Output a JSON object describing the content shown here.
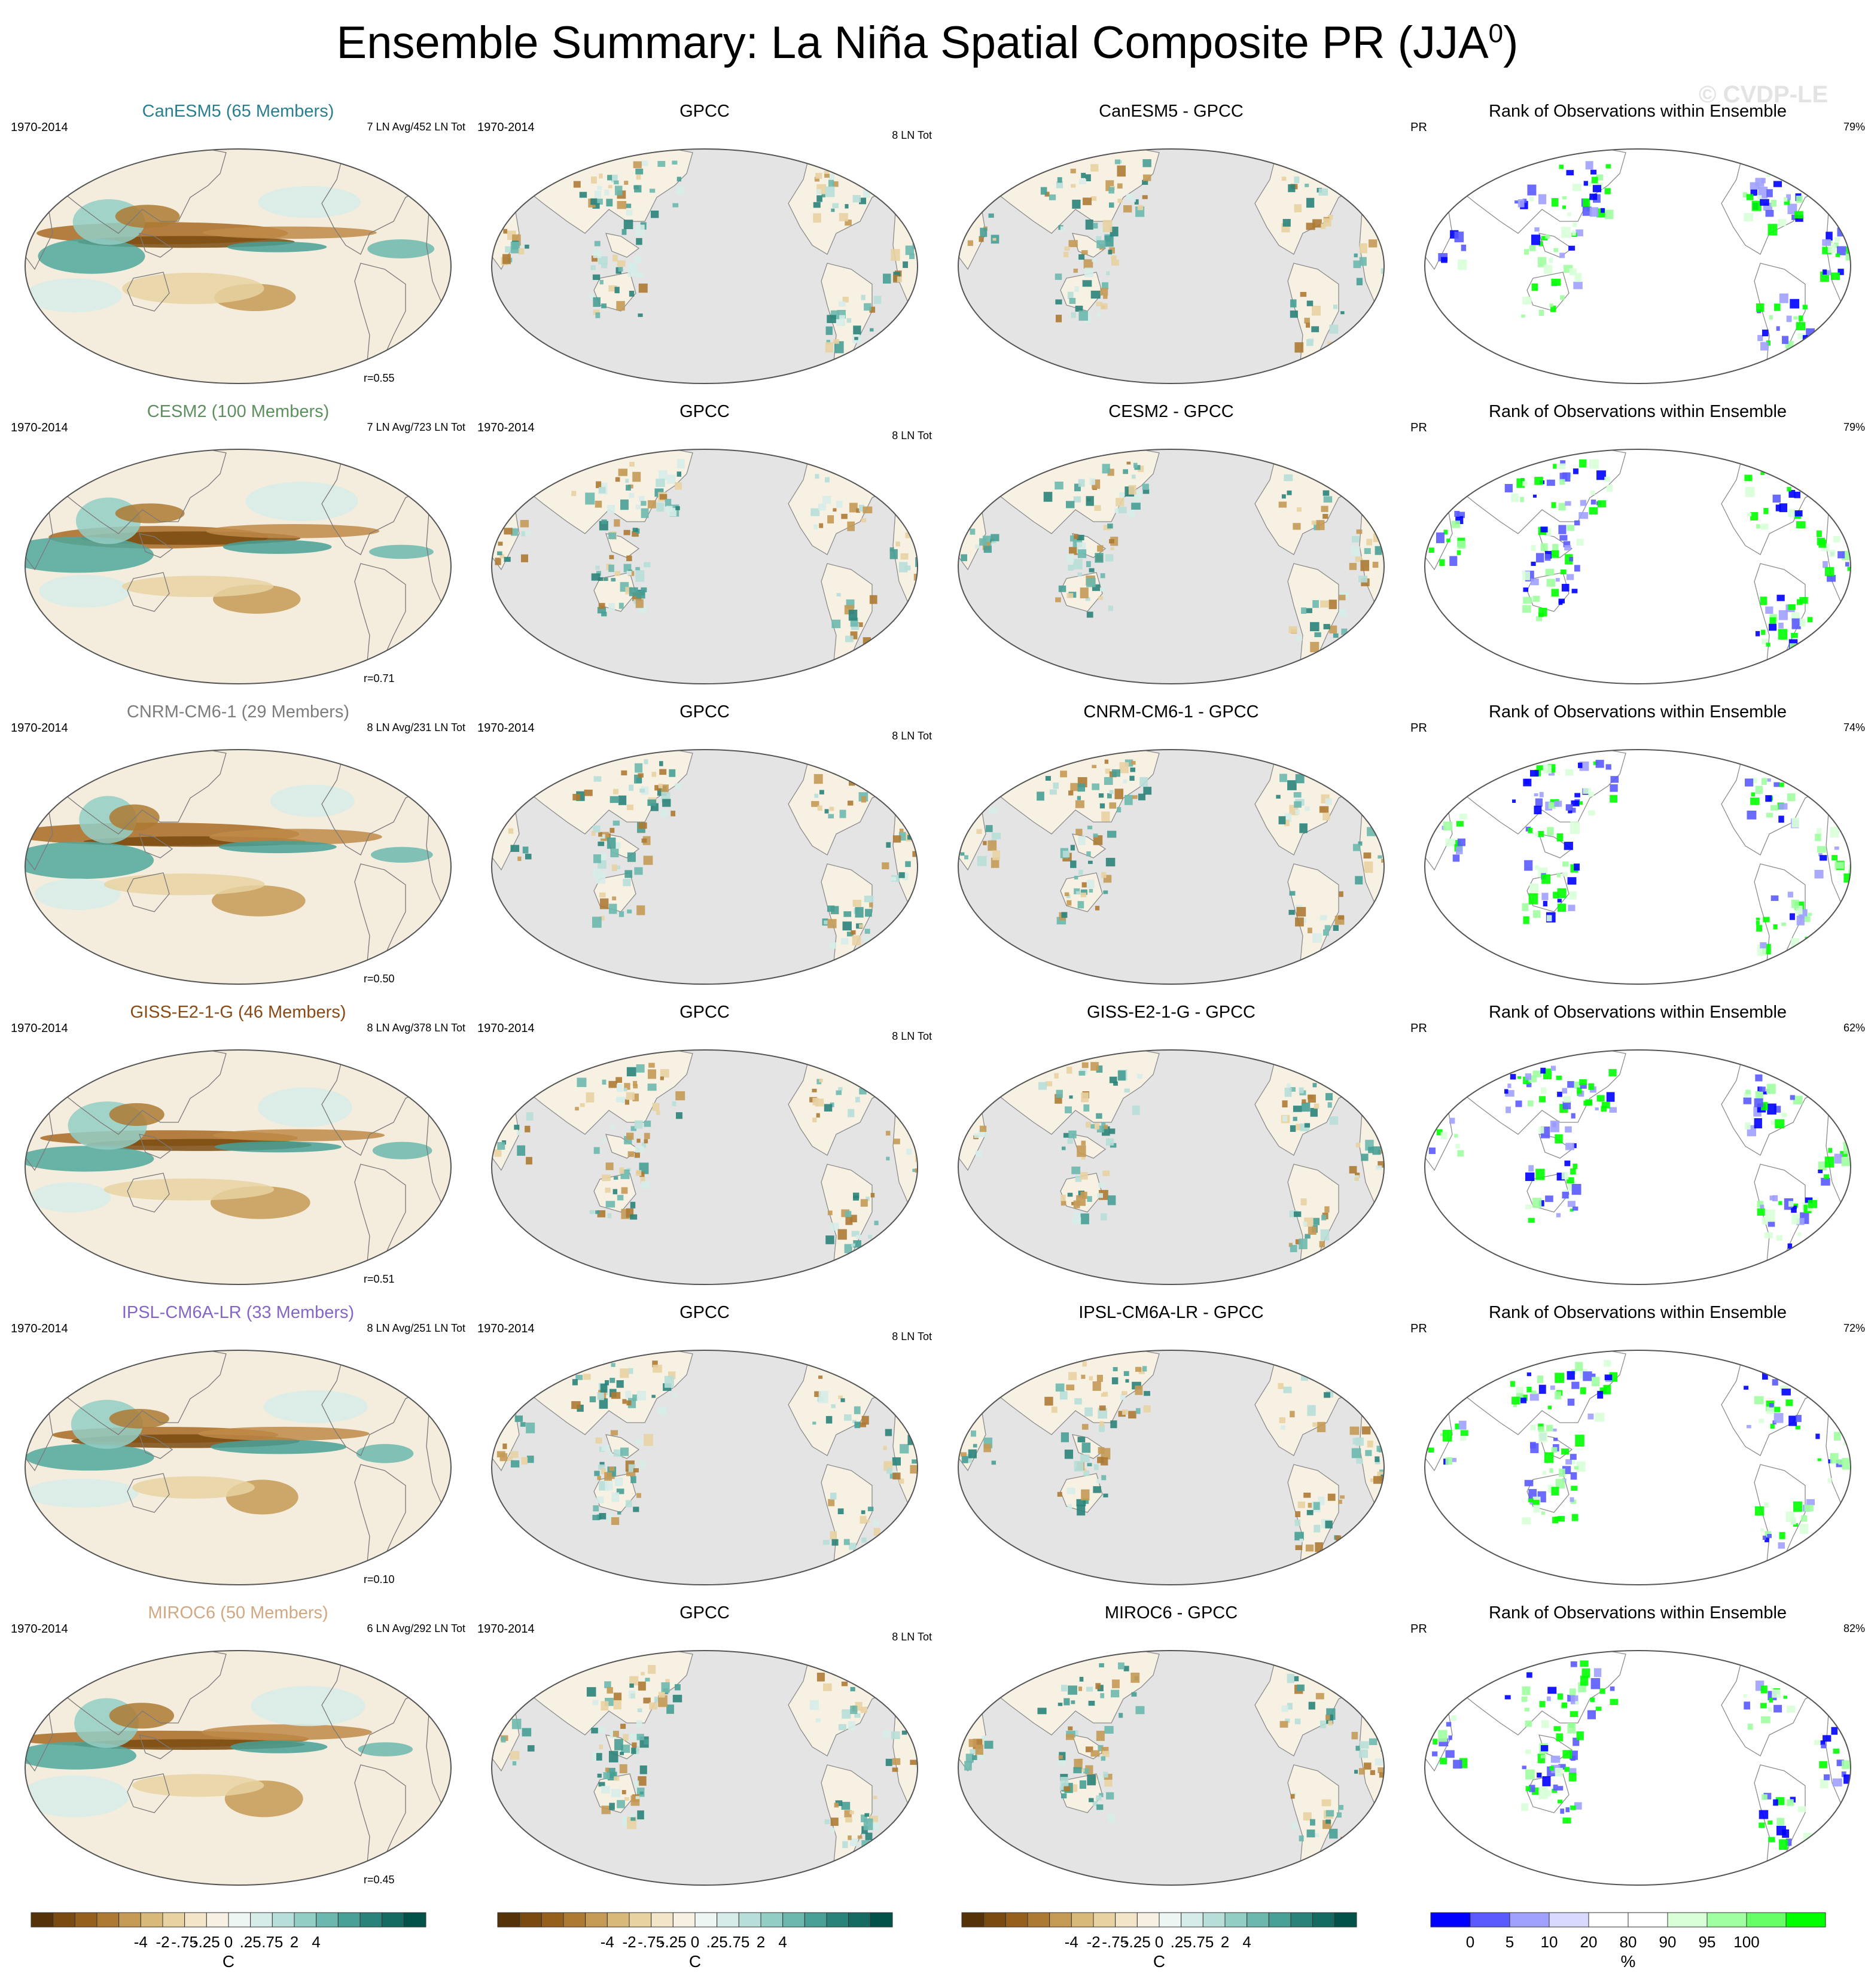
{
  "title_main": "Ensemble Summary: La Niña Spatial Composite PR (JJA",
  "title_sup": "0",
  "title_end": ")",
  "watermark": "© CVDP-LE",
  "rows": [
    {
      "model_title": "CanESM5 (65 Members)",
      "color": "#2a7f8f",
      "period": "1970-2014",
      "model_count": "7 LN Avg/452 LN Tot",
      "r": "r=0.55",
      "obs_title": "GPCC",
      "obs_period": "1970-2014",
      "obs_count": "8 LN Tot",
      "diff_title": "CanESM5 - GPCC",
      "rank_title": "Rank of Observations within Ensemble",
      "rank_var": "PR",
      "rank_pct": "79%"
    },
    {
      "model_title": "CESM2 (100 Members)",
      "color": "#5e8f5e",
      "period": "1970-2014",
      "model_count": "7 LN Avg/723 LN Tot",
      "r": "r=0.71",
      "obs_title": "GPCC",
      "obs_period": "1970-2014",
      "obs_count": "8 LN Tot",
      "diff_title": "CESM2 - GPCC",
      "rank_title": "Rank of Observations within Ensemble",
      "rank_var": "PR",
      "rank_pct": "79%"
    },
    {
      "model_title": "CNRM-CM6-1 (29 Members)",
      "color": "#7d7d7d",
      "period": "1970-2014",
      "model_count": "8 LN Avg/231 LN Tot",
      "r": "r=0.50",
      "obs_title": "GPCC",
      "obs_period": "1970-2014",
      "obs_count": "8 LN Tot",
      "diff_title": "CNRM-CM6-1 - GPCC",
      "rank_title": "Rank of Observations within Ensemble",
      "rank_var": "PR",
      "rank_pct": "74%"
    },
    {
      "model_title": "GISS-E2-1-G (46 Members)",
      "color": "#8a4a16",
      "period": "1970-2014",
      "model_count": "8 LN Avg/378 LN Tot",
      "r": "r=0.51",
      "obs_title": "GPCC",
      "obs_period": "1970-2014",
      "obs_count": "8 LN Tot",
      "diff_title": "GISS-E2-1-G - GPCC",
      "rank_title": "Rank of Observations within Ensemble",
      "rank_var": "PR",
      "rank_pct": "62%"
    },
    {
      "model_title": "IPSL-CM6A-LR (33 Members)",
      "color": "#8466c8",
      "period": "1970-2014",
      "model_count": "8 LN Avg/251 LN Tot",
      "r": "r=0.10",
      "obs_title": "GPCC",
      "obs_period": "1970-2014",
      "obs_count": "8 LN Tot",
      "diff_title": "IPSL-CM6A-LR - GPCC",
      "rank_title": "Rank of Observations within Ensemble",
      "rank_var": "PR",
      "rank_pct": "72%"
    },
    {
      "model_title": "MIROC6 (50 Members)",
      "color": "#d2a882",
      "period": "1970-2014",
      "model_count": "6 LN Avg/292 LN Tot",
      "r": "r=0.45",
      "obs_title": "GPCC",
      "obs_period": "1970-2014",
      "obs_count": "8 LN Tot",
      "diff_title": "MIROC6 - GPCC",
      "rank_title": "Rank of Observations within Ensemble",
      "rank_var": "PR",
      "rank_pct": "82%"
    }
  ],
  "colorbar_brbg": {
    "colors": [
      "#553208",
      "#7a4a10",
      "#96601c",
      "#ad7a33",
      "#c49a55",
      "#d8b97a",
      "#e8d2a2",
      "#f3e6c8",
      "#f7f1e3",
      "#eef6f4",
      "#d6ece8",
      "#b7ded8",
      "#93cec5",
      "#6cb8ae",
      "#479f95",
      "#2a837a",
      "#156b62",
      "#03524a"
    ],
    "ticks": [
      "-4",
      "-2",
      "-.75",
      "-.25",
      "0",
      ".25",
      ".75",
      "2",
      "4"
    ],
    "unit": "C"
  },
  "colorbar_rank": {
    "colors": [
      "#0000ff",
      "#5a5aff",
      "#a0a0ff",
      "#d9d9ff",
      "#ffffff",
      "#ffffff",
      "#d8ffd8",
      "#a0ffa0",
      "#66ff66",
      "#00ff00"
    ],
    "ticks": [
      "0",
      "5",
      "10",
      "20",
      "80",
      "90",
      "95",
      "100"
    ],
    "unit": "%"
  }
}
